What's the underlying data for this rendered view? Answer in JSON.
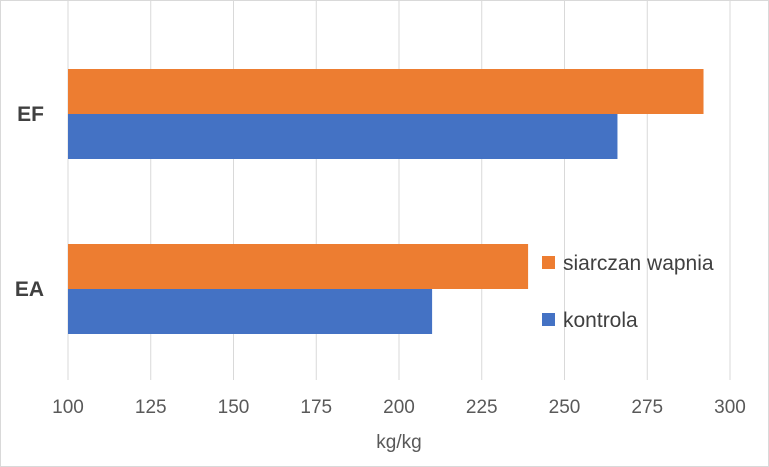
{
  "chart_data": {
    "type": "bar",
    "orientation": "horizontal",
    "categories": [
      "EF",
      "EA"
    ],
    "series": [
      {
        "name": "siarczan wapnia",
        "color": "#ED7D31",
        "values": [
          292,
          239
        ]
      },
      {
        "name": "kontrola",
        "color": "#4472C4",
        "values": [
          266,
          210
        ]
      }
    ],
    "xlabel": "kg/kg",
    "xlim": [
      100,
      300
    ],
    "xticks": [
      100,
      125,
      150,
      175,
      200,
      225,
      250,
      275,
      300
    ],
    "grid": true,
    "legend_position": "right-inside"
  }
}
